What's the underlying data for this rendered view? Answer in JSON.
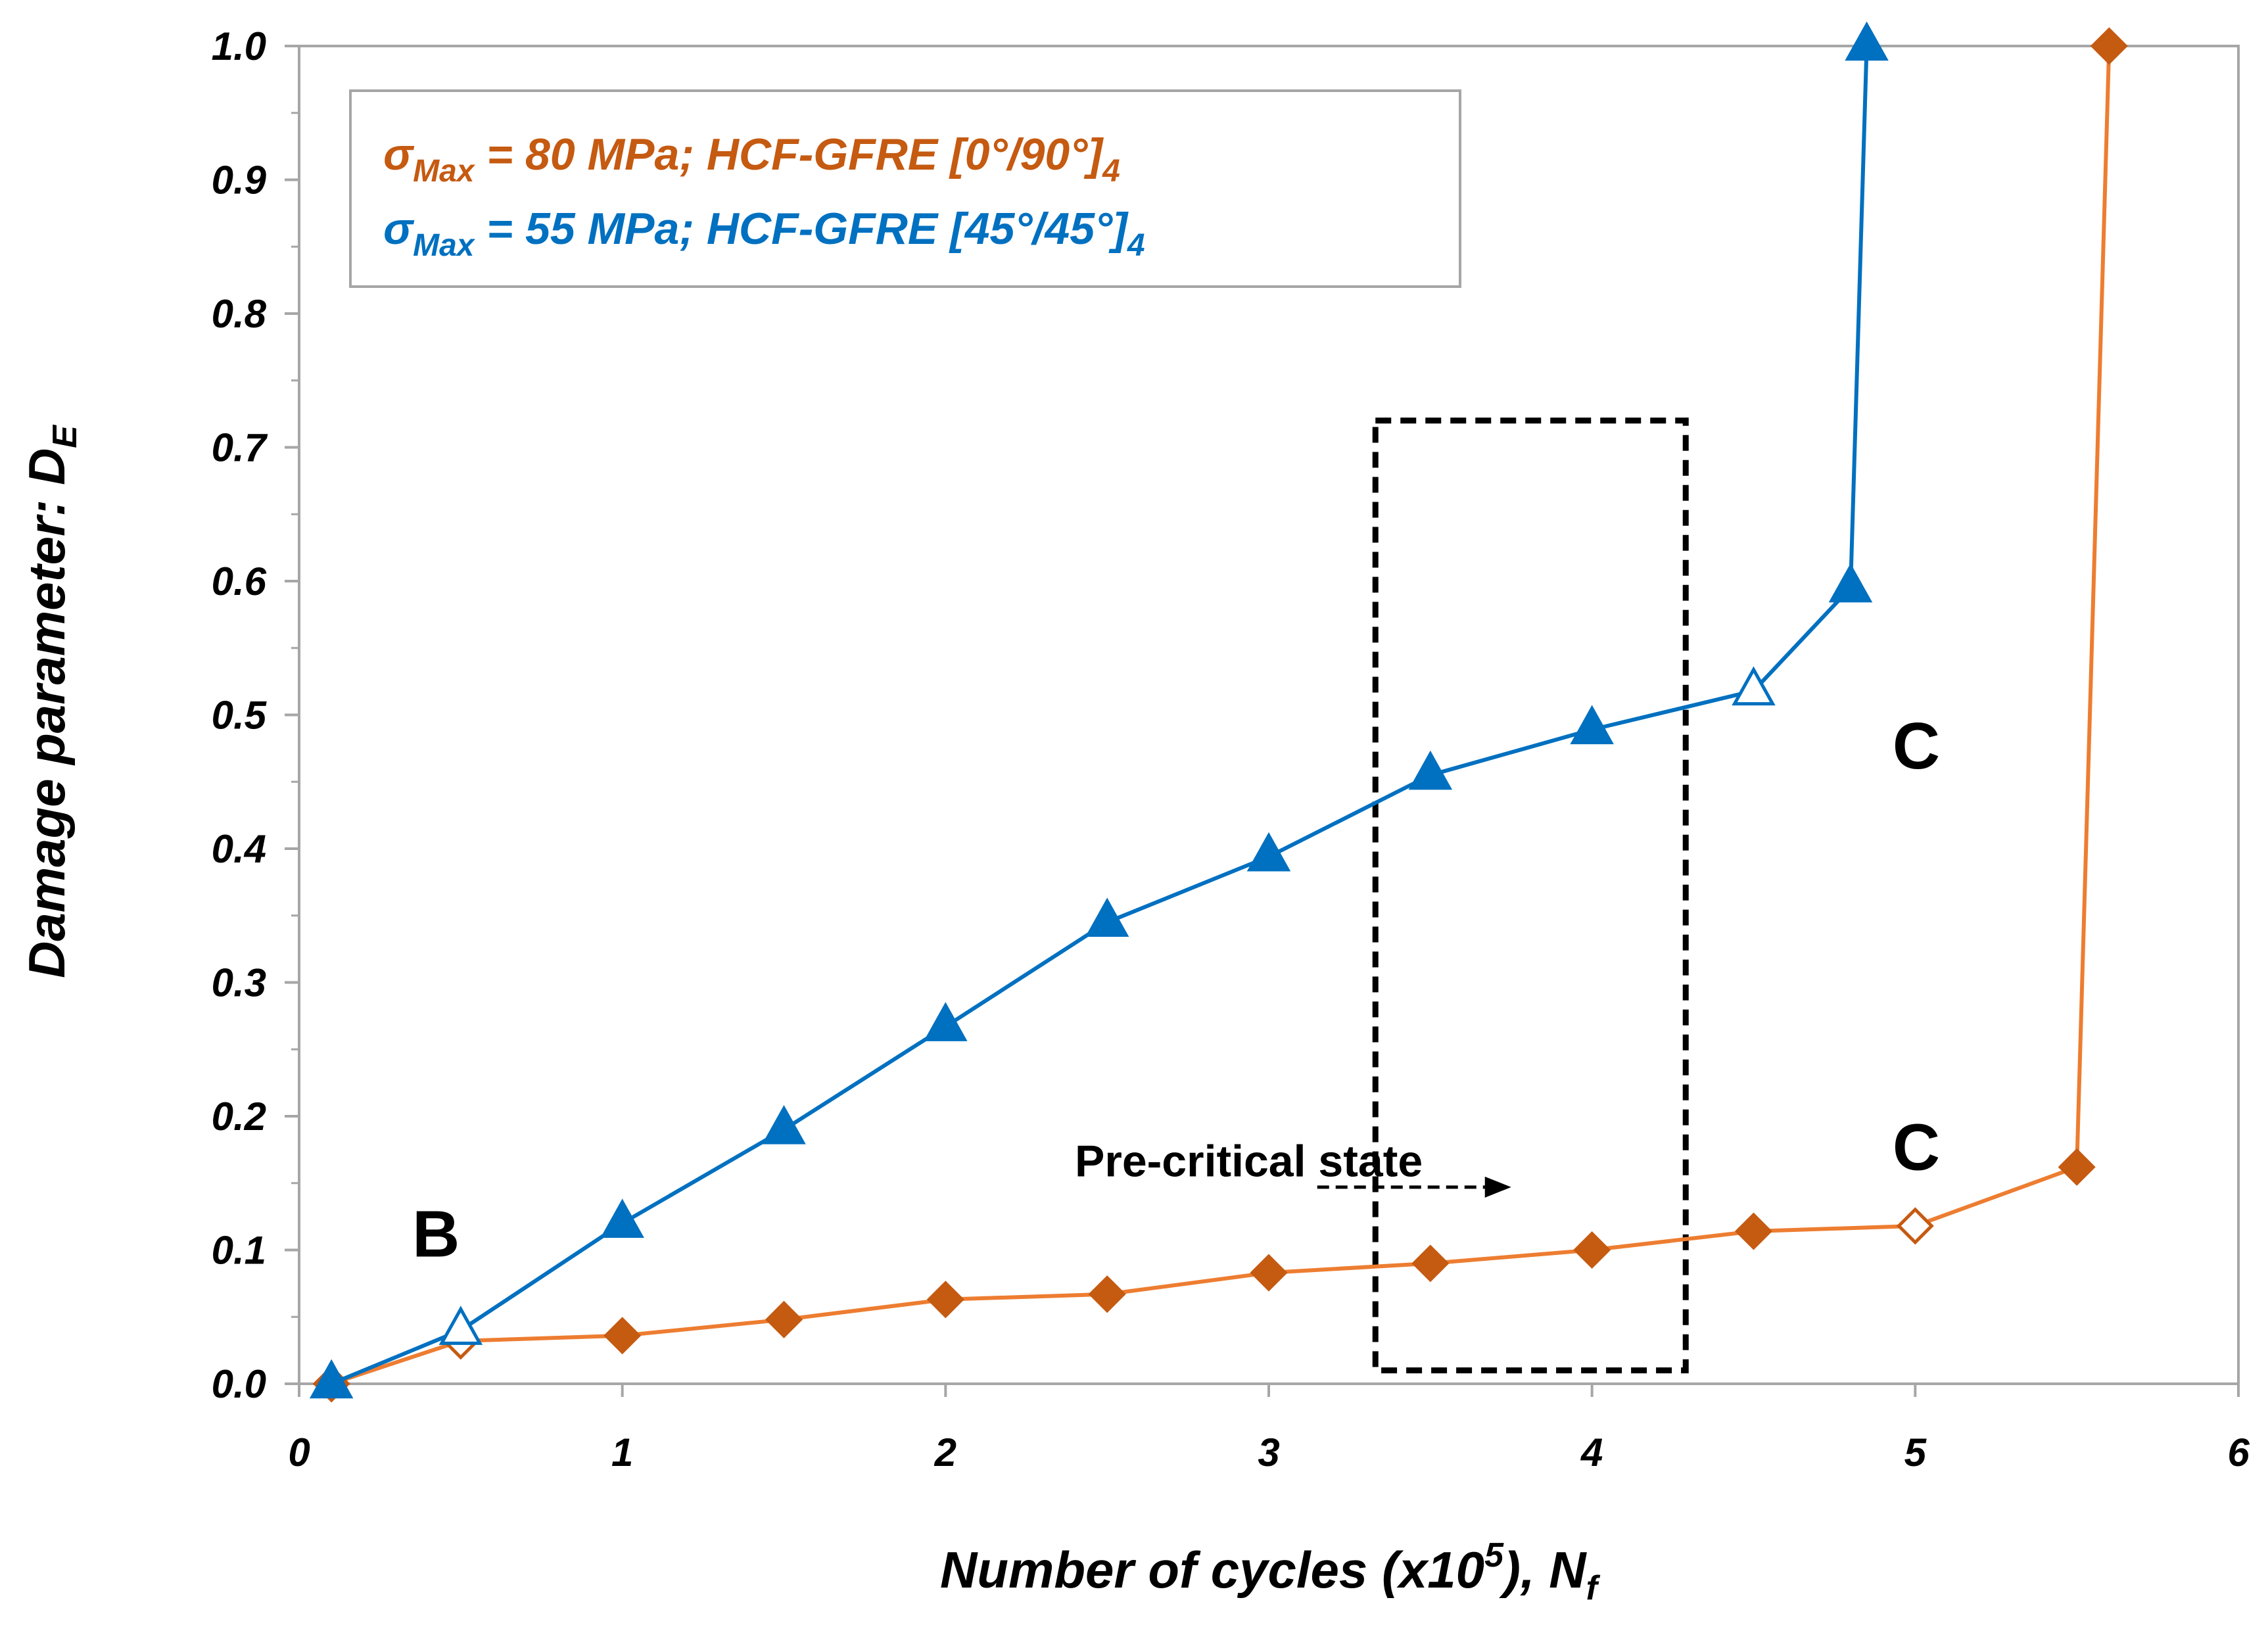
{
  "chart_data": {
    "type": "line",
    "title": "",
    "xlabel": {
      "main": "Number of cycles (x10",
      "sup": "5",
      "mid": "), N",
      "sub": "f"
    },
    "ylabel": {
      "main": "Damage parameter: D",
      "sub": "E"
    },
    "xlim": [
      0,
      6
    ],
    "ylim": [
      0,
      1
    ],
    "x_ticks": [
      "0",
      "1",
      "2",
      "3",
      "4",
      "5",
      "6"
    ],
    "y_ticks": [
      "0.0",
      "0.1",
      "0.2",
      "0.3",
      "0.4",
      "0.5",
      "0.6",
      "0.7",
      "0.8",
      "0.9",
      "1.0"
    ],
    "grid": false,
    "legend_position": "top-left",
    "series": [
      {
        "name": "σMax = 80 MPa; HCF-GFRE [0°/90°]4",
        "legend": {
          "sym": "σ",
          "sub": "Max",
          "mid": " = 80 MPa; HCF-GFRE [0°/90°]",
          "sub2": "4"
        },
        "color": "#C55A11",
        "line_color": "#ED7D31",
        "marker": "diamond",
        "x": [
          0.1,
          0.5,
          1.0,
          1.5,
          2.0,
          2.5,
          3.0,
          3.5,
          4.0,
          4.5,
          5.0,
          5.5,
          5.6
        ],
        "y": [
          0.0,
          0.032,
          0.036,
          0.048,
          0.063,
          0.067,
          0.083,
          0.09,
          0.1,
          0.114,
          0.118,
          0.162,
          1.0
        ],
        "hollow": [
          1,
          10
        ]
      },
      {
        "name": "σMax = 55 MPa; HCF-GFRE [45°/45°]4",
        "legend": {
          "sym": "σ",
          "sub": "Max",
          "mid": " = 55 MPa; HCF-GFRE [45°/45°]",
          "sub2": "4"
        },
        "color": "#0070C0",
        "line_color": "#0070C0",
        "marker": "triangle",
        "x": [
          0.1,
          0.5,
          1.0,
          1.5,
          2.0,
          2.5,
          3.0,
          3.5,
          4.0,
          4.5,
          4.8,
          4.85
        ],
        "y": [
          0.0,
          0.04,
          0.12,
          0.19,
          0.267,
          0.345,
          0.394,
          0.455,
          0.489,
          0.518,
          0.595,
          1.0
        ],
        "hollow": [
          1,
          9
        ]
      }
    ],
    "annotations": [
      {
        "text": "B",
        "x": 0.35,
        "y": 0.095,
        "style": "big"
      },
      {
        "text": "C",
        "x": 4.93,
        "y": 0.46,
        "style": "big"
      },
      {
        "text": "C",
        "x": 4.93,
        "y": 0.16,
        "style": "big"
      },
      {
        "text": "Pre-critical state",
        "x": 2.4,
        "y": 0.155,
        "style": "text"
      }
    ],
    "region": {
      "x0": 3.33,
      "x1": 4.29,
      "y0": 0.01,
      "y1": 0.72,
      "arrow_from": [
        3.15,
        0.147
      ],
      "arrow_to": [
        3.75,
        0.147
      ]
    }
  }
}
